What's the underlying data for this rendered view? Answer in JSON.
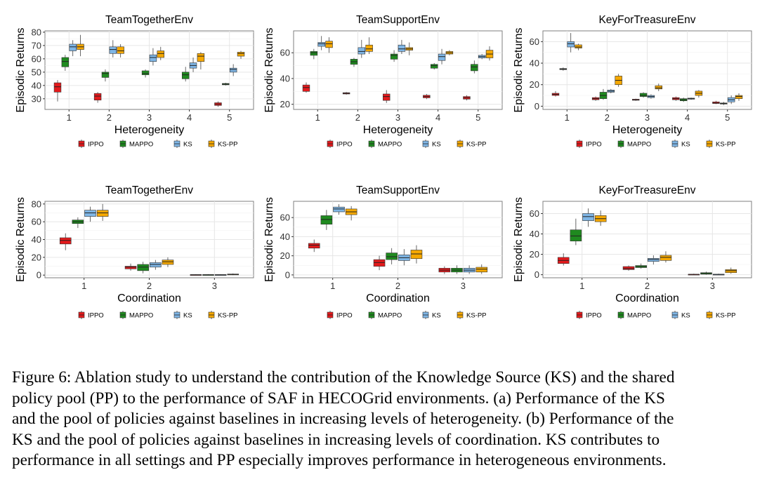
{
  "colors": {
    "IPPO": "#e41a1c",
    "MAPPO": "#1f8a1f",
    "KS": "#7fb6e6",
    "KS-PP": "#f5a800",
    "grid": "#e6e6e6",
    "panel_border": "#7f7f7f"
  },
  "legend": [
    "IPPO",
    "MAPPO",
    "KS",
    "KS-PP"
  ],
  "caption": {
    "line1": "Figure 6: Ablation study to understand the contribution of the Knowledge Source (KS) and the shared",
    "line2_pre": "policy pool (PP) to the performance of ",
    "line2_saf": "SAF",
    "line2_post": " in HECOGrid environments. (a) Performance of the KS",
    "line3": "and the pool of policies against baselines in increasing levels of heterogeneity. (b) Performance of the",
    "line4": "KS and the pool of policies against baselines in increasing levels of coordination. KS contributes to",
    "line5": "performance in all settings and PP especially improves performance in heterogeneous environments."
  },
  "chart_data": [
    {
      "type": "box",
      "title": "TeamTogetherEnv",
      "xlabel": "Heterogeneity",
      "ylabel": "Episodic Returns",
      "categories": [
        "1",
        "2",
        "3",
        "4",
        "5"
      ],
      "ylim": [
        22,
        81
      ],
      "yticks": [
        30,
        40,
        50,
        60,
        70,
        80
      ],
      "series": [
        {
          "name": "IPPO",
          "boxes": [
            [
              28,
              35,
              39,
              42,
              44
            ],
            [
              27,
              29,
              32,
              34,
              35
            ],
            null,
            null,
            [
              24,
              25,
              26,
              27,
              28
            ]
          ]
        },
        {
          "name": "MAPPO",
          "boxes": [
            [
              51,
              54,
              58,
              61,
              63
            ],
            [
              43,
              46,
              49,
              50,
              52
            ],
            [
              46,
              48,
              49,
              51,
              52
            ],
            [
              43,
              45,
              48,
              50,
              54
            ],
            [
              40,
              40.5,
              41,
              41.5,
              42
            ]
          ]
        },
        {
          "name": "KS",
          "boxes": [
            [
              62,
              66,
              69,
              71,
              74
            ],
            [
              61,
              64,
              67,
              69,
              74
            ],
            [
              55,
              58,
              61,
              63,
              68
            ],
            [
              50,
              53,
              55,
              57,
              61
            ],
            [
              47,
              50,
              52,
              53,
              56
            ]
          ]
        },
        {
          "name": "KS-PP",
          "boxes": [
            [
              62,
              67,
              69,
              71,
              78
            ],
            [
              61,
              64,
              66,
              69,
              71
            ],
            [
              59,
              61,
              64,
              66,
              69
            ],
            [
              52,
              58,
              62,
              64,
              65
            ],
            [
              60,
              62,
              64,
              65,
              66
            ]
          ]
        }
      ]
    },
    {
      "type": "box",
      "title": "TeamSupportEnv",
      "xlabel": "Heterogeneity",
      "ylabel": "Episodic Returns",
      "categories": [
        "1",
        "2",
        "3",
        "4",
        "5"
      ],
      "ylim": [
        16,
        77
      ],
      "yticks": [
        20,
        40,
        60
      ],
      "series": [
        {
          "name": "IPPO",
          "boxes": [
            [
              29,
              30,
              33,
              35,
              37
            ],
            [
              27.5,
              28,
              28.5,
              29,
              29.5
            ],
            [
              21,
              23,
              26,
              28,
              31
            ],
            [
              24,
              25,
              26,
              27,
              28
            ],
            [
              23,
              24,
              25,
              26,
              27
            ]
          ]
        },
        {
          "name": "MAPPO",
          "boxes": [
            [
              55,
              58,
              60,
              61,
              63
            ],
            [
              49,
              51,
              53,
              55,
              56
            ],
            [
              53,
              55,
              58,
              59,
              62
            ],
            [
              47,
              48,
              50,
              51,
              52
            ],
            [
              44,
              46,
              49,
              51,
              54
            ]
          ]
        },
        {
          "name": "KS",
          "boxes": [
            [
              62,
              65,
              67,
              68,
              73
            ],
            [
              56,
              59,
              61,
              64,
              70
            ],
            [
              59,
              61,
              63,
              66,
              70
            ],
            [
              51,
              54,
              57,
              59,
              63
            ],
            [
              55,
              56,
              57,
              58,
              59
            ]
          ]
        },
        {
          "name": "KS-PP",
          "boxes": [
            [
              60,
              64,
              67,
              69,
              72
            ],
            [
              59,
              61,
              63,
              66,
              72
            ],
            [
              58,
              62,
              63,
              64,
              68
            ],
            [
              58,
              59,
              60,
              61,
              62
            ],
            [
              54,
              56,
              59,
              62,
              65
            ]
          ]
        }
      ]
    },
    {
      "type": "box",
      "title": "KeyForTreasureEnv",
      "xlabel": "Heterogeneity",
      "ylabel": "Episodic Returns",
      "categories": [
        "1",
        "2",
        "3",
        "4",
        "5"
      ],
      "ylim": [
        -3,
        70
      ],
      "yticks": [
        0,
        20,
        40,
        60
      ],
      "series": [
        {
          "name": "IPPO",
          "boxes": [
            [
              9,
              10,
              11,
              12,
              14
            ],
            [
              5,
              6,
              7,
              8,
              9
            ],
            [
              5,
              5.5,
              6,
              6.5,
              7
            ],
            [
              5,
              6,
              7,
              8,
              9
            ],
            [
              2,
              2.5,
              3,
              4,
              5
            ]
          ]
        },
        {
          "name": "MAPPO",
          "boxes": [
            [
              33,
              34,
              34.5,
              35,
              36
            ],
            [
              6,
              7,
              10,
              13,
              16
            ],
            [
              8,
              9,
              10,
              12,
              13
            ],
            [
              4,
              5,
              6,
              7,
              8
            ],
            [
              1,
              2,
              2.5,
              3,
              4
            ]
          ]
        },
        {
          "name": "KS",
          "boxes": [
            [
              50,
              55,
              58,
              60,
              68
            ],
            [
              12,
              13,
              14,
              15,
              16
            ],
            [
              7,
              8,
              9,
              10,
              11
            ],
            [
              6,
              6.5,
              7,
              7.5,
              8
            ],
            [
              2,
              4,
              6,
              8,
              10
            ]
          ]
        },
        {
          "name": "KS-PP",
          "boxes": [
            [
              52,
              54,
              55,
              57,
              58
            ],
            [
              18,
              20,
              24,
              28,
              30
            ],
            [
              14,
              16,
              17,
              19,
              21
            ],
            [
              8,
              10,
              12,
              14,
              15
            ],
            [
              5,
              7,
              9,
              10,
              12
            ]
          ]
        }
      ]
    },
    {
      "type": "box",
      "title": "TeamTogetherEnv",
      "xlabel": "Coordination",
      "ylabel": "Episodic Returns",
      "categories": [
        "1",
        "2",
        "3"
      ],
      "ylim": [
        -3,
        83
      ],
      "yticks": [
        0,
        20,
        40,
        60,
        80
      ],
      "series": [
        {
          "name": "IPPO",
          "boxes": [
            [
              28,
              35,
              39,
              42,
              47
            ],
            [
              5,
              7,
              9,
              10,
              13
            ],
            [
              0,
              0,
              0.3,
              0.6,
              1
            ]
          ]
        },
        {
          "name": "MAPPO",
          "boxes": [
            [
              53,
              58,
              60,
              62,
              65
            ],
            [
              2,
              5,
              9,
              12,
              15
            ],
            [
              0,
              0,
              0.3,
              0.6,
              1
            ]
          ]
        },
        {
          "name": "KS",
          "boxes": [
            [
              60,
              66,
              70,
              73,
              77
            ],
            [
              6,
              9,
              12,
              14,
              17
            ],
            [
              0,
              0,
              0.3,
              0.6,
              1
            ]
          ]
        },
        {
          "name": "KS-PP",
          "boxes": [
            [
              61,
              66,
              70,
              73,
              80
            ],
            [
              9,
              12,
              15,
              17,
              20
            ],
            [
              0,
              0.3,
              0.8,
              1.2,
              1.8
            ]
          ]
        }
      ]
    },
    {
      "type": "box",
      "title": "TeamSupportEnv",
      "xlabel": "Coordination",
      "ylabel": "Episodic Returns",
      "categories": [
        "1",
        "2",
        "3"
      ],
      "ylim": [
        -3,
        77
      ],
      "yticks": [
        0,
        20,
        40,
        60
      ],
      "series": [
        {
          "name": "IPPO",
          "boxes": [
            [
              24,
              28,
              31,
              33,
              37
            ],
            [
              5,
              9,
              13,
              16,
              20
            ],
            [
              1,
              3,
              5,
              7,
              9
            ]
          ]
        },
        {
          "name": "MAPPO",
          "boxes": [
            [
              47,
              53,
              58,
              62,
              68
            ],
            [
              11,
              16,
              19,
              23,
              28
            ],
            [
              1,
              3,
              5,
              7,
              10
            ]
          ]
        },
        {
          "name": "KS",
          "boxes": [
            [
              63,
              66,
              69,
              71,
              74
            ],
            [
              10,
              15,
              18,
              21,
              27
            ],
            [
              1,
              3,
              5,
              7,
              10
            ]
          ]
        },
        {
          "name": "KS-PP",
          "boxes": [
            [
              57,
              63,
              66,
              69,
              72
            ],
            [
              12,
              17,
              22,
              26,
              31
            ],
            [
              1,
              3,
              6,
              8,
              11
            ]
          ]
        }
      ]
    },
    {
      "type": "box",
      "title": "KeyForTreasureEnv",
      "xlabel": "Coordination",
      "ylabel": "Episodic Returns",
      "categories": [
        "1",
        "2",
        "3"
      ],
      "ylim": [
        -3,
        72
      ],
      "yticks": [
        0,
        20,
        40,
        60
      ],
      "series": [
        {
          "name": "IPPO",
          "boxes": [
            [
              9,
              11,
              14,
              17,
              21
            ],
            [
              4,
              5,
              6,
              8,
              9
            ],
            [
              0,
              0,
              0.3,
              0.5,
              1
            ]
          ]
        },
        {
          "name": "MAPPO",
          "boxes": [
            [
              29,
              33,
              38,
              44,
              55
            ],
            [
              6,
              7,
              8,
              9,
              11
            ],
            [
              0,
              0.5,
              1.2,
              2,
              3
            ]
          ]
        },
        {
          "name": "KS",
          "boxes": [
            [
              47,
              53,
              57,
              60,
              65
            ],
            [
              10,
              13,
              15,
              16,
              19
            ],
            [
              0,
              0,
              0.3,
              0.5,
              1
            ]
          ]
        },
        {
          "name": "KS-PP",
          "boxes": [
            [
              48,
              52,
              55,
              58,
              63
            ],
            [
              12,
              14,
              17,
              19,
              23
            ],
            [
              1,
              2,
              4,
              5,
              7
            ]
          ]
        }
      ]
    }
  ]
}
